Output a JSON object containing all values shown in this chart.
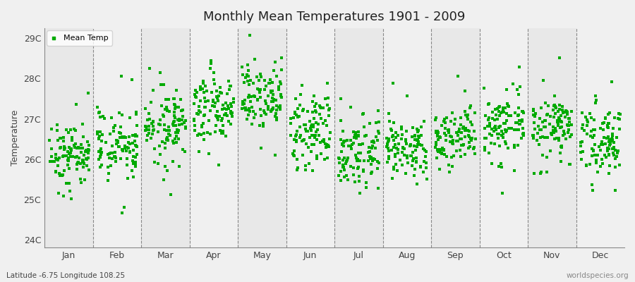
{
  "title": "Monthly Mean Temperatures 1901 - 2009",
  "ylabel": "Temperature",
  "xlabel_labels": [
    "Jan",
    "Feb",
    "Mar",
    "Apr",
    "May",
    "Jun",
    "Jul",
    "Aug",
    "Sep",
    "Oct",
    "Nov",
    "Dec"
  ],
  "bottom_left_text": "Latitude -6.75 Longitude 108.25",
  "bottom_right_text": "worldspecies.org",
  "ylim": [
    23.8,
    29.25
  ],
  "yticks": [
    24,
    25,
    26,
    27,
    28,
    29
  ],
  "ytick_labels": [
    "24C",
    "25C",
    "26C",
    "27C",
    "28C",
    "29C"
  ],
  "marker_color": "#00aa00",
  "marker": "s",
  "marker_size": 2.5,
  "legend_label": "Mean Temp",
  "background_color": "#f0f0f0",
  "band_color_even": "#e8e8e8",
  "band_color_odd": "#f0f0f0",
  "monthly_means": [
    26.15,
    26.35,
    26.85,
    27.25,
    27.45,
    26.65,
    26.25,
    26.25,
    26.55,
    26.85,
    26.85,
    26.45
  ],
  "monthly_stds": [
    0.38,
    0.42,
    0.42,
    0.4,
    0.42,
    0.4,
    0.42,
    0.38,
    0.38,
    0.4,
    0.4,
    0.42
  ],
  "n_years": 109,
  "seed": 42
}
